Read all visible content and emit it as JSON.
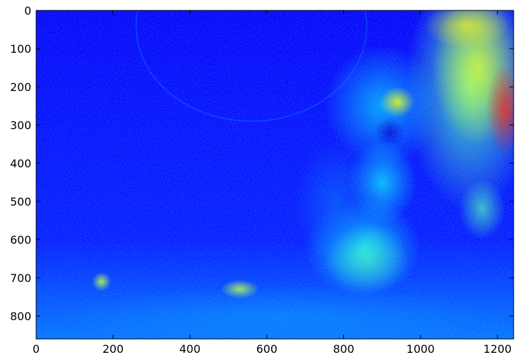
{
  "chart_data": {
    "type": "image",
    "colormap": "jet",
    "xlim": [
      0,
      1242
    ],
    "ylim": [
      860,
      0
    ],
    "xticks": [
      0,
      200,
      400,
      600,
      800,
      1000,
      1200
    ],
    "yticks": [
      0,
      100,
      200,
      300,
      400,
      500,
      600,
      700,
      800
    ]
  }
}
